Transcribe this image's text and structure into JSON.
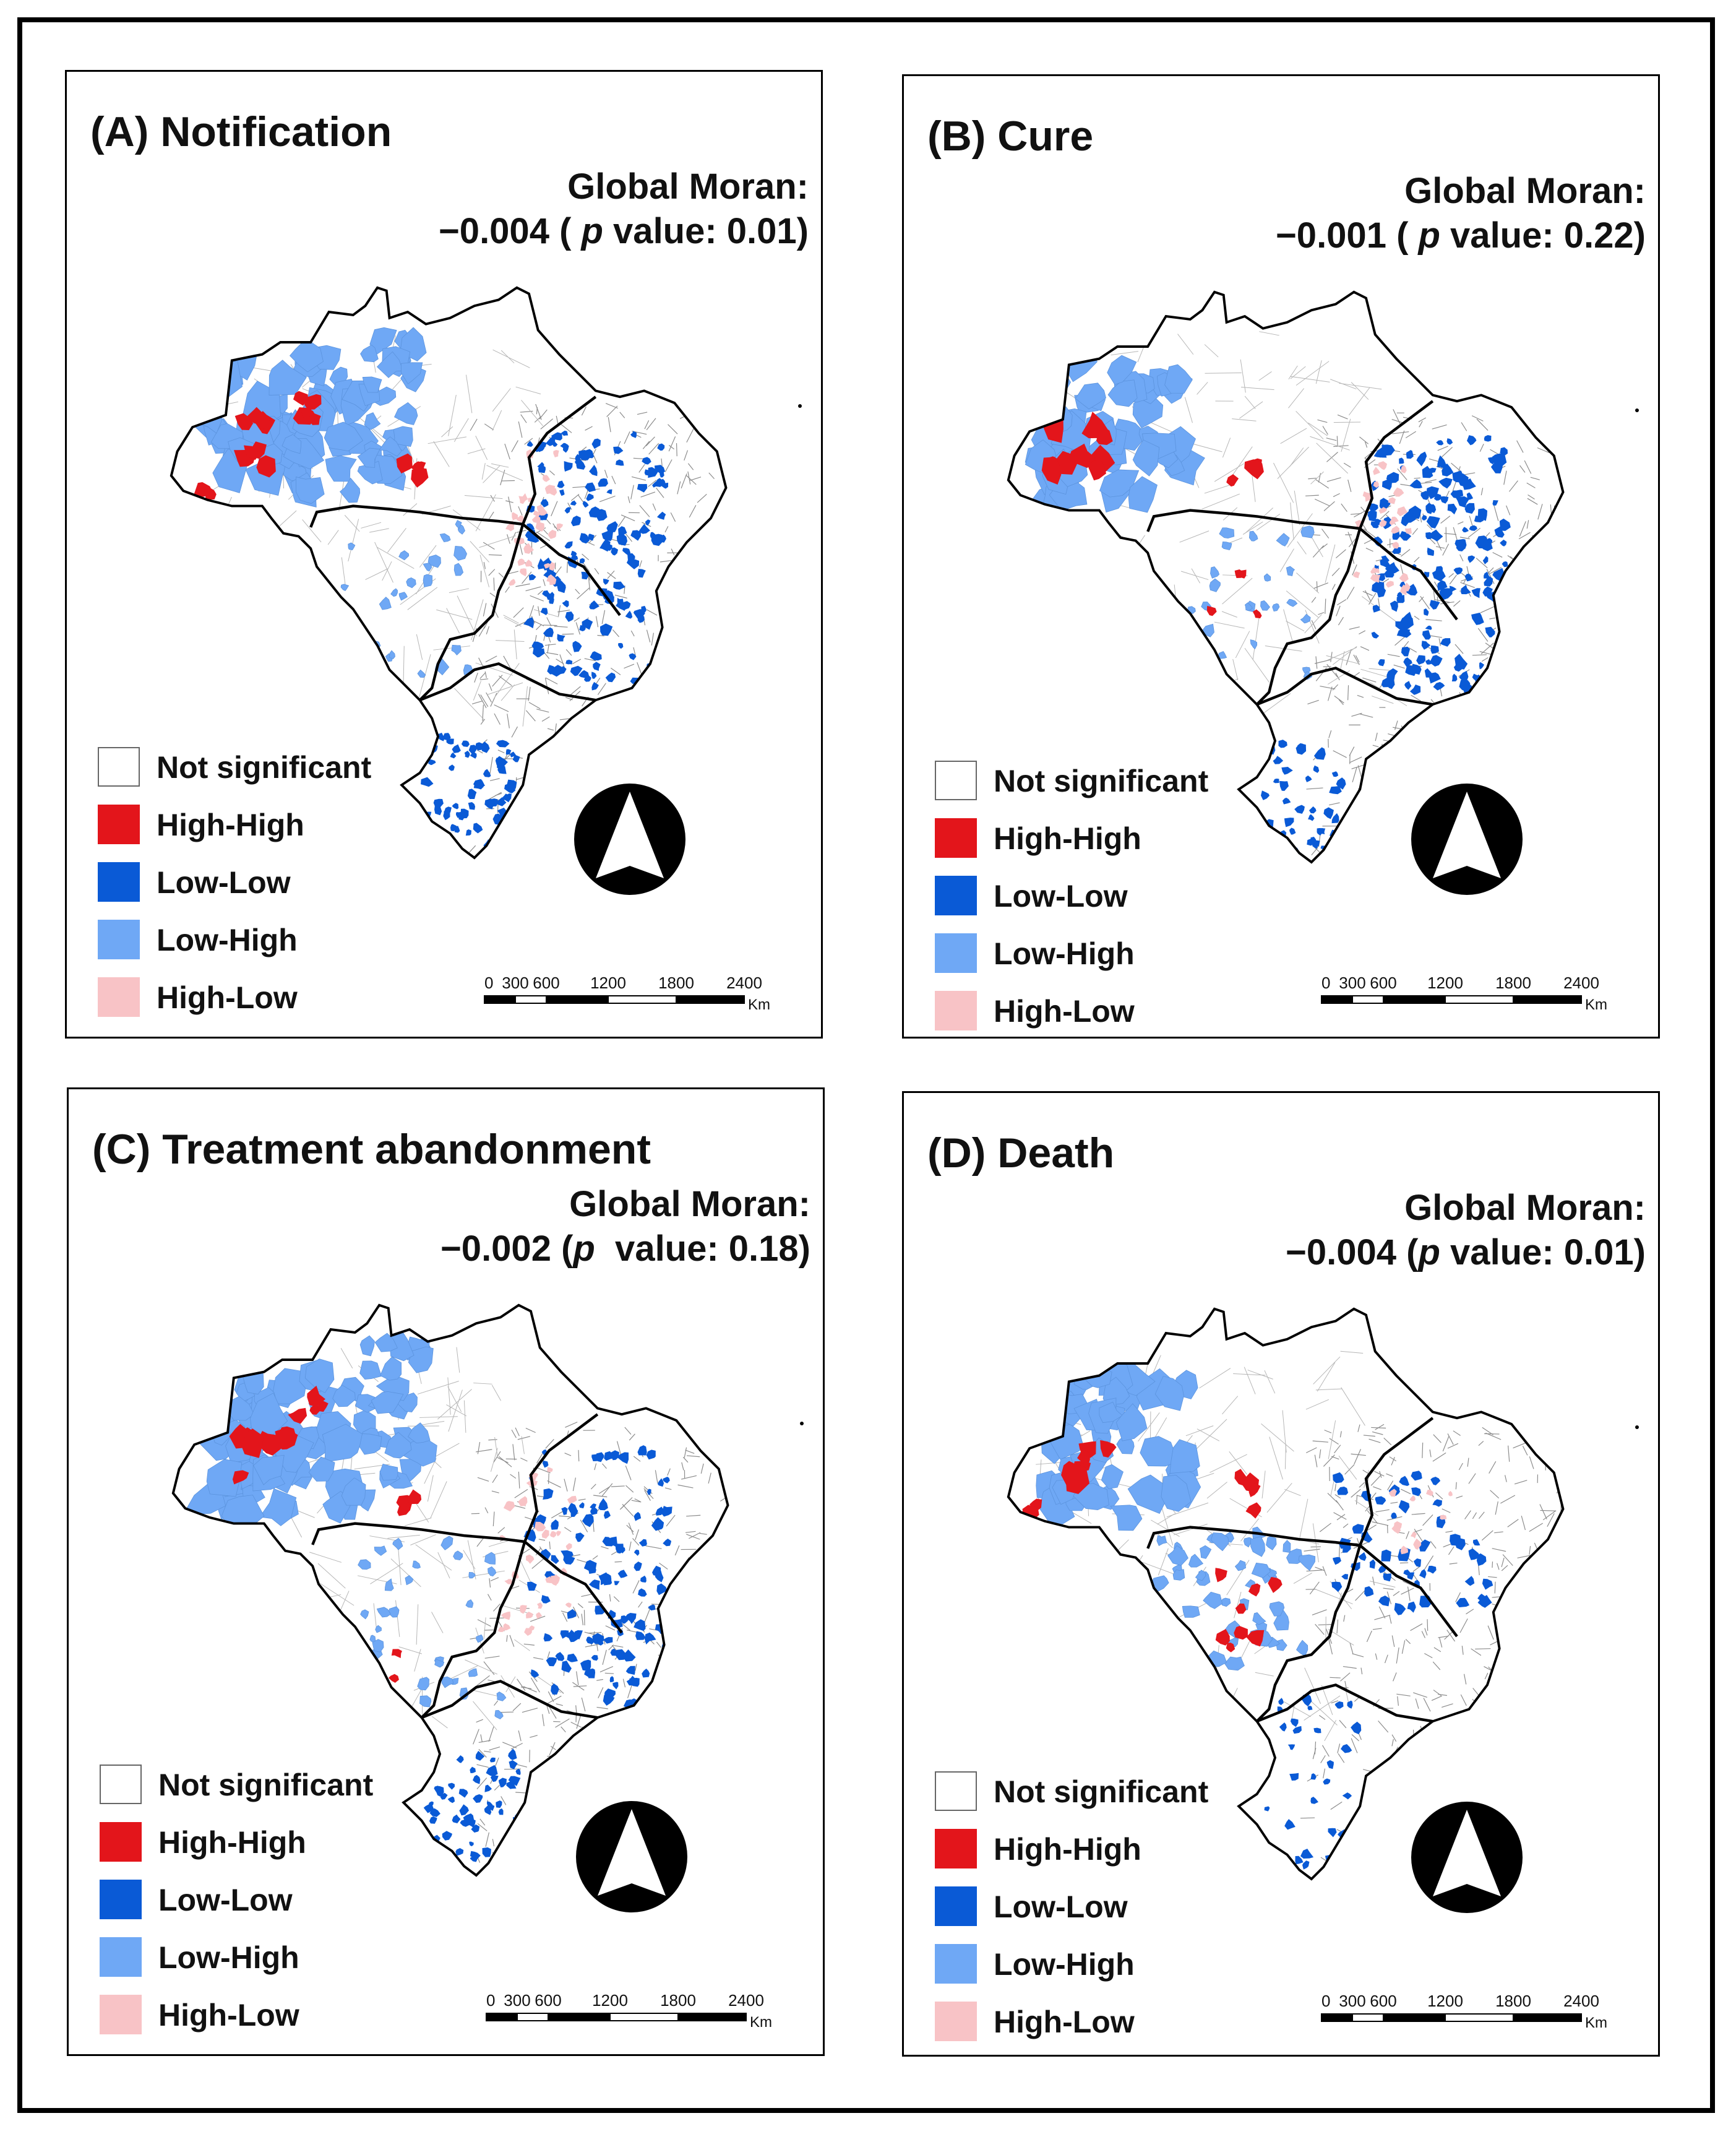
{
  "colors": {
    "not_significant": "#ffffff",
    "high_high": "#e3151b",
    "low_low": "#0a5ad6",
    "low_high": "#6fa8f5",
    "high_low": "#f8c3c6",
    "boundary": "#000000",
    "municipality_lines": "#8a8a8a"
  },
  "legend": [
    {
      "key": "not_significant",
      "label": "Not significant"
    },
    {
      "key": "high_high",
      "label": "High-High"
    },
    {
      "key": "low_low",
      "label": "Low-Low"
    },
    {
      "key": "low_high",
      "label": "Low-High"
    },
    {
      "key": "high_low",
      "label": "High-Low"
    }
  ],
  "scale_bar": {
    "ticks": [
      "0",
      "300",
      "600",
      "1200",
      "1800",
      "2400"
    ],
    "unit": "Km"
  },
  "north_arrow_icon": "north-arrow-icon",
  "panels": [
    {
      "id": "A",
      "title": "(A) Notification",
      "moran_label": "Global Moran:",
      "moran_value": "−0.004",
      "moran_open": " ( ",
      "p_letter": "p",
      "moran_rest": " value: 0.01)"
    },
    {
      "id": "B",
      "title": "(B) Cure",
      "moran_label": "Global Moran:",
      "moran_value": "−0.001",
      "moran_open": " ( ",
      "p_letter": "p",
      "moran_rest": " value: 0.22)"
    },
    {
      "id": "C",
      "title": "(C) Treatment abandonment",
      "moran_label": "Global Moran:",
      "moran_value": "−0.002",
      "moran_open": " (",
      "p_letter": "p",
      "moran_rest": "  value: 0.18)"
    },
    {
      "id": "D",
      "title": "(D) Death",
      "moran_label": "Global Moran:",
      "moran_value": "−0.004",
      "moran_open": " (",
      "p_letter": "p",
      "moran_rest": " value: 0.01)"
    }
  ]
}
